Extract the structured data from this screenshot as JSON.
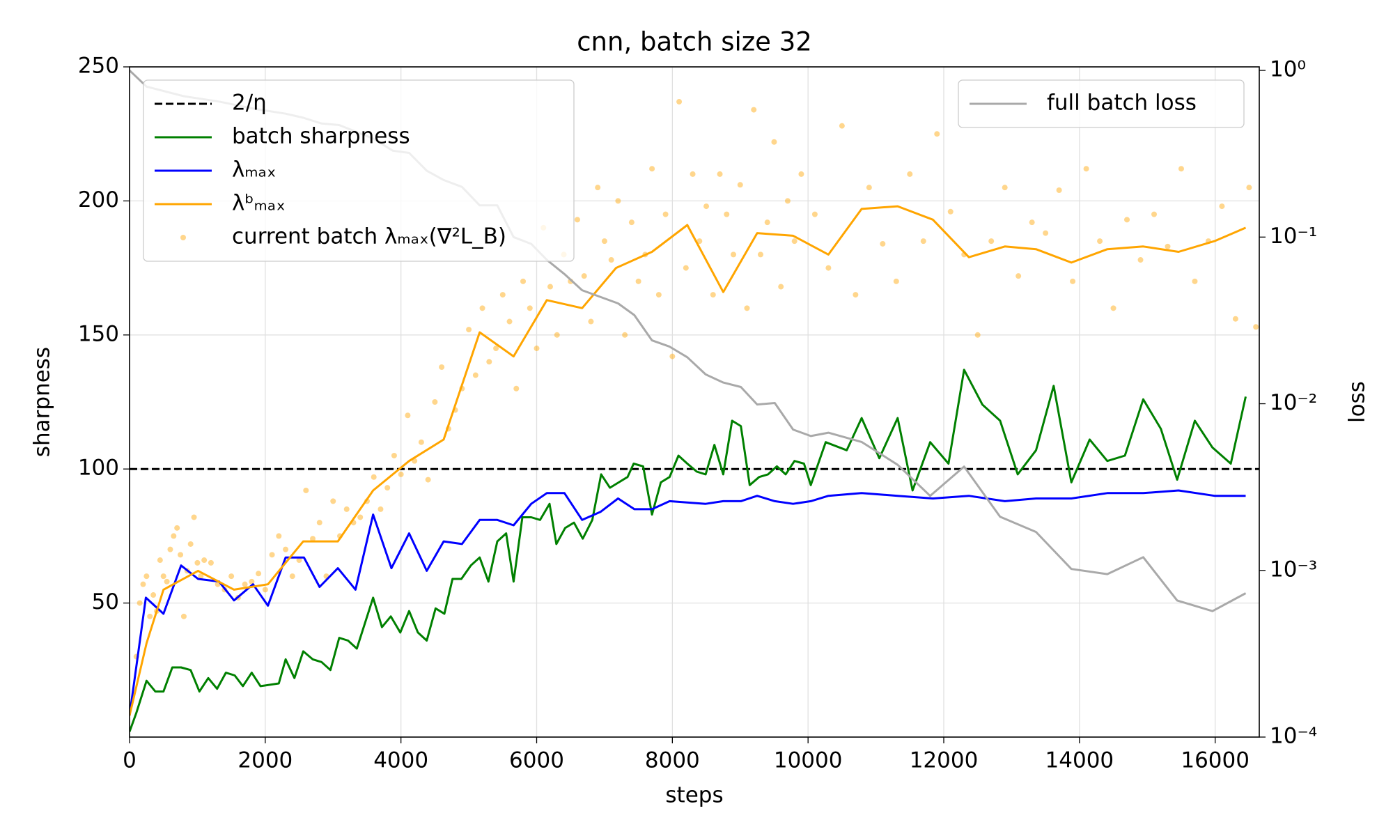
{
  "chart_data": {
    "type": "line",
    "title": "cnn, batch size 32",
    "xlabel": "steps",
    "ylabel": "sharpness",
    "y2label": "loss",
    "xlim": [
      0,
      16650
    ],
    "xticks": [
      0,
      2000,
      4000,
      6000,
      8000,
      10000,
      12000,
      14000,
      16000
    ],
    "ylim": [
      0,
      250
    ],
    "yticks": [
      50,
      100,
      150,
      200,
      250
    ],
    "y2lim": [
      0.0001,
      1.05
    ],
    "y2scale": "log",
    "y2ticks": [
      {
        "value": 0.0001,
        "label": "10⁻⁴"
      },
      {
        "value": 0.001,
        "label": "10⁻³"
      },
      {
        "value": 0.01,
        "label": "10⁻²"
      },
      {
        "value": 0.1,
        "label": "10⁻¹"
      },
      {
        "value": 1,
        "label": "10⁰"
      }
    ],
    "grid": true,
    "legend": "upper left",
    "legend2": "upper right",
    "hline": {
      "name": "2/η",
      "value": 100,
      "color": "#000000"
    },
    "series": [
      {
        "name": "batch sharpness",
        "color": "#008000",
        "x": [
          0,
          100,
          250,
          380,
          500,
          630,
          760,
          900,
          1030,
          1160,
          1290,
          1420,
          1550,
          1670,
          1800,
          1930,
          2200,
          2300,
          2430,
          2560,
          2700,
          2830,
          2960,
          3090,
          3220,
          3350,
          3590,
          3720,
          3850,
          3990,
          4120,
          4250,
          4380,
          4510,
          4640,
          4760,
          4890,
          5030,
          5160,
          5290,
          5420,
          5550,
          5660,
          5790,
          5920,
          6050,
          6190,
          6290,
          6420,
          6550,
          6680,
          6820,
          6950,
          7080,
          7210,
          7340,
          7430,
          7570,
          7700,
          7830,
          7960,
          8090,
          8220,
          8360,
          8490,
          8620,
          8750,
          8880,
          9010,
          9140,
          9280,
          9410,
          9540,
          9670,
          9800,
          9940,
          10040,
          10260,
          10570,
          10790,
          11050,
          11320,
          11540,
          11800,
          12070,
          12300,
          12570,
          12830,
          13090,
          13360,
          13620,
          13880,
          14150,
          14410,
          14670,
          14940,
          15200,
          15440,
          15700,
          15960,
          16230,
          16450
        ],
        "values": [
          2,
          9,
          21,
          17,
          17,
          26,
          26,
          25,
          17,
          22,
          18,
          24,
          23,
          19,
          24,
          19,
          20,
          29,
          22,
          32,
          29,
          28,
          25,
          37,
          36,
          33,
          52,
          41,
          45,
          39,
          47,
          39,
          36,
          48,
          46,
          59,
          59,
          64,
          67,
          58,
          73,
          76,
          58,
          82,
          82,
          81,
          87,
          72,
          78,
          80,
          74,
          81,
          98,
          93,
          95,
          97,
          102,
          101,
          83,
          95,
          97,
          105,
          102,
          99,
          98,
          109,
          98,
          118,
          116,
          94,
          97,
          98,
          101,
          98,
          103,
          102,
          94,
          110,
          107,
          119,
          104,
          119,
          92,
          110,
          102,
          137,
          124,
          118,
          98,
          107,
          131,
          95,
          111,
          103,
          105,
          126,
          115,
          96,
          118,
          108,
          102,
          127
        ]
      },
      {
        "name": "λₘₐₓ",
        "color": "#0000ff",
        "x": [
          0,
          240,
          500,
          760,
          1010,
          1320,
          1540,
          1820,
          2040,
          2300,
          2570,
          2800,
          3070,
          3330,
          3590,
          3860,
          4120,
          4380,
          4630,
          4900,
          5160,
          5420,
          5660,
          5920,
          6150,
          6410,
          6670,
          6940,
          7200,
          7440,
          7700,
          7960,
          8490,
          8750,
          9010,
          9250,
          9510,
          9780,
          10040,
          10300,
          10790,
          11320,
          11840,
          12370,
          12900,
          13360,
          13880,
          14410,
          14940,
          15460,
          15990,
          16450
        ],
        "values": [
          8,
          52,
          46,
          64,
          59,
          58,
          51,
          57,
          49,
          67,
          67,
          56,
          63,
          55,
          83,
          63,
          76,
          62,
          73,
          72,
          81,
          81,
          79,
          87,
          91,
          91,
          81,
          84,
          89,
          85,
          85,
          88,
          87,
          88,
          88,
          90,
          88,
          87,
          88,
          90,
          91,
          90,
          89,
          90,
          88,
          89,
          89,
          91,
          91,
          92,
          90,
          90
        ]
      },
      {
        "name": "λᵇₘₐₓ",
        "color": "#ffa500",
        "x": [
          0,
          250,
          500,
          1010,
          1540,
          2040,
          2560,
          3070,
          3590,
          4120,
          4630,
          5160,
          5660,
          6150,
          6670,
          7170,
          7700,
          8220,
          8750,
          9250,
          9780,
          10300,
          10790,
          11320,
          11840,
          12370,
          12900,
          13360,
          13880,
          14410,
          14940,
          15460,
          15990,
          16450
        ],
        "values": [
          8,
          35,
          55,
          62,
          55,
          57,
          73,
          73,
          92,
          103,
          111,
          151,
          142,
          163,
          160,
          175,
          181,
          191,
          166,
          188,
          187,
          180,
          197,
          198,
          193,
          179,
          183,
          182,
          177,
          182,
          183,
          181,
          185,
          190
        ]
      },
      {
        "name": "current batch λₘₐₓ(∇²L_B)",
        "color": "#ffa500",
        "style": "scatter",
        "x": [
          100,
          150,
          200,
          250,
          300,
          350,
          400,
          450,
          500,
          550,
          600,
          650,
          700,
          750,
          800,
          850,
          900,
          950,
          1000,
          1050,
          1100,
          1200,
          1300,
          1400,
          1500,
          1600,
          1700,
          1800,
          1900,
          2000,
          2100,
          2200,
          2300,
          2400,
          2500,
          2600,
          2700,
          2800,
          2900,
          3000,
          3100,
          3200,
          3300,
          3400,
          3500,
          3600,
          3700,
          3800,
          3900,
          4000,
          4100,
          4200,
          4300,
          4400,
          4500,
          4600,
          4700,
          4800,
          4900,
          5000,
          5100,
          5200,
          5300,
          5400,
          5500,
          5600,
          5700,
          5800,
          5900,
          6000,
          6100,
          6200,
          6300,
          6400,
          6500,
          6600,
          6700,
          6800,
          6900,
          7000,
          7100,
          7200,
          7300,
          7400,
          7500,
          7600,
          7700,
          7800,
          7900,
          8000,
          8100,
          8200,
          8300,
          8400,
          8500,
          8600,
          8700,
          8800,
          8900,
          9000,
          9100,
          9200,
          9300,
          9400,
          9500,
          9600,
          9700,
          9800,
          9900,
          10100,
          10300,
          10500,
          10700,
          10900,
          11100,
          11300,
          11500,
          11700,
          11900,
          12100,
          12300,
          12500,
          12700,
          12900,
          13100,
          13300,
          13500,
          13700,
          13900,
          14100,
          14300,
          14500,
          14700,
          14900,
          15100,
          15300,
          15500,
          15700,
          15900,
          16100,
          16300,
          16500,
          16600
        ],
        "values": [
          30,
          50,
          57,
          60,
          45,
          53,
          47,
          66,
          60,
          58,
          70,
          75,
          78,
          68,
          45,
          62,
          72,
          82,
          65,
          60,
          66,
          65,
          57,
          55,
          60,
          52,
          57,
          58,
          61,
          55,
          68,
          75,
          70,
          60,
          66,
          92,
          74,
          80,
          60,
          88,
          75,
          85,
          80,
          82,
          88,
          97,
          85,
          93,
          105,
          98,
          120,
          103,
          110,
          96,
          125,
          138,
          115,
          122,
          130,
          152,
          135,
          160,
          140,
          145,
          165,
          155,
          130,
          170,
          160,
          145,
          190,
          168,
          150,
          180,
          170,
          193,
          172,
          155,
          205,
          185,
          178,
          200,
          150,
          192,
          170,
          180,
          212,
          165,
          195,
          142,
          237,
          175,
          210,
          185,
          198,
          165,
          210,
          195,
          180,
          206,
          160,
          234,
          180,
          192,
          222,
          168,
          200,
          185,
          210,
          195,
          175,
          228,
          165,
          205,
          184,
          170,
          210,
          185,
          225,
          196,
          180,
          150,
          185,
          205,
          172,
          192,
          188,
          204,
          170,
          212,
          185,
          160,
          193,
          178,
          195,
          183,
          212,
          170,
          185,
          198,
          156,
          205,
          153
        ]
      },
      {
        "name": "full batch loss",
        "color": "#a9a9a9",
        "axis": "y2",
        "x": [
          0,
          250,
          800,
          1320,
          1820,
          2300,
          2560,
          2830,
          3090,
          3330,
          3590,
          3880,
          4120,
          4380,
          4630,
          4900,
          5160,
          5420,
          5660,
          5920,
          6150,
          6410,
          6670,
          7200,
          7440,
          7700,
          7960,
          8220,
          8490,
          8750,
          9010,
          9250,
          9510,
          9780,
          10040,
          10300,
          10790,
          11320,
          11800,
          12300,
          12830,
          13360,
          13880,
          14410,
          14940,
          15440,
          15960,
          16450
        ],
        "values": [
          1.0,
          0.8,
          0.7,
          0.65,
          0.59,
          0.55,
          0.52,
          0.48,
          0.47,
          0.43,
          0.39,
          0.33,
          0.32,
          0.25,
          0.22,
          0.2,
          0.155,
          0.155,
          0.1,
          0.091,
          0.073,
          0.06,
          0.048,
          0.04,
          0.034,
          0.024,
          0.022,
          0.019,
          0.015,
          0.0134,
          0.0126,
          0.0099,
          0.0101,
          0.007,
          0.0064,
          0.0067,
          0.0059,
          0.0043,
          0.0028,
          0.0042,
          0.0021,
          0.0017,
          0.00102,
          0.00095,
          0.0012,
          0.00066,
          0.00057,
          0.00073
        ]
      }
    ]
  }
}
